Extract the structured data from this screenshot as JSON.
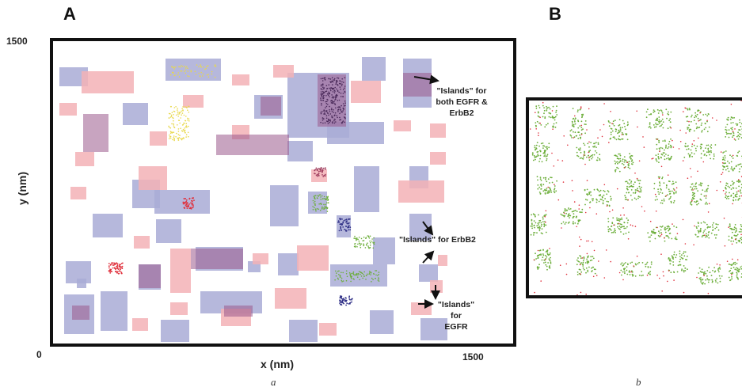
{
  "panels": {
    "a": {
      "letter": "A",
      "caption": "a"
    },
    "b": {
      "letter": "B",
      "caption": "b"
    }
  },
  "axes": {
    "ylabel": "y (nm)",
    "xlabel": "x (nm)",
    "y_max_tick": "1500",
    "origin_tick": "0",
    "x_max_tick": "1500"
  },
  "annotations": {
    "both_line1": "\"Islands\" for",
    "both_line2": "both EGFR &",
    "both_line3": "ErbB2",
    "erbb2": "\"Islands\" for ErbB2",
    "egfr_line1": "\"Islands\" for",
    "egfr_line2": "EGFR"
  },
  "colors": {
    "blue_island": "#a9acd6",
    "pink_island": "#f3b2b6",
    "overlap": "#9a5a8c",
    "red_dots": "#e0303c",
    "green_dots": "#6cae3a",
    "yellow_dots": "#e8d84a"
  }
}
